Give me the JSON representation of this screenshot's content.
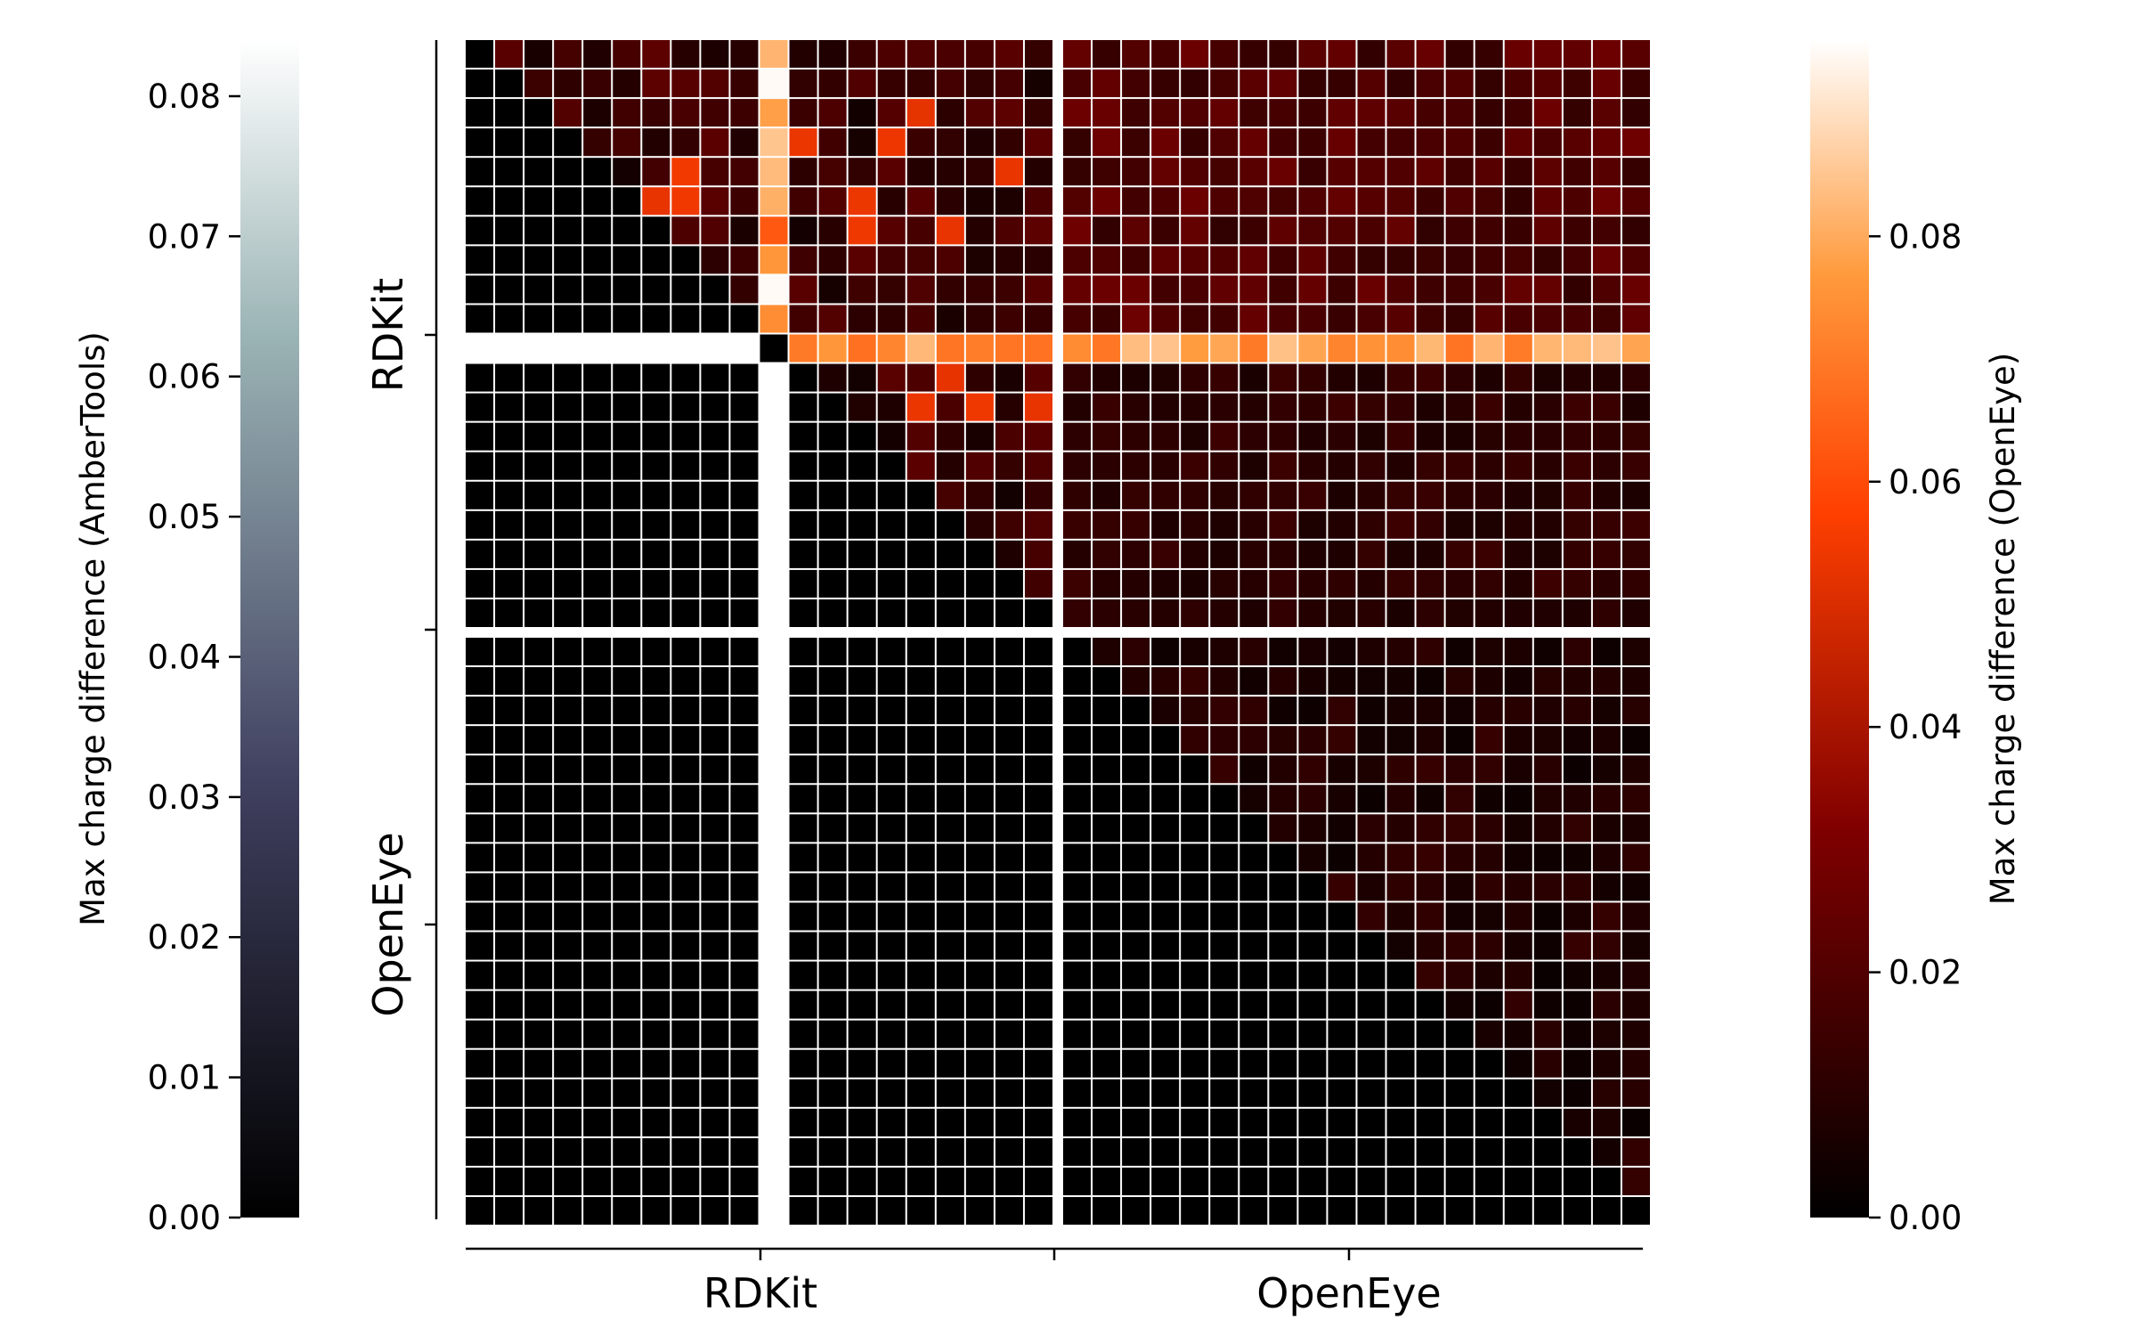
{
  "chart_data": {
    "type": "heatmap",
    "description_groups": {
      "row_groups": [
        "RDKit",
        "OpenEye"
      ],
      "col_groups": [
        "RDKit",
        "OpenEye"
      ]
    },
    "grid": {
      "rows": 40,
      "cols": 40,
      "group_split": 20,
      "nan_row": 10,
      "nan_col": 10
    },
    "colorbars": [
      {
        "id": "ambertools",
        "label": "Max charge difference (AmberTools)",
        "range": [
          0.0,
          0.084
        ],
        "ticks": [
          0.0,
          0.01,
          0.02,
          0.03,
          0.04,
          0.05,
          0.06,
          0.07,
          0.08
        ],
        "tick_labels": [
          "0.00",
          "0.01",
          "0.02",
          "0.03",
          "0.04",
          "0.05",
          "0.06",
          "0.07",
          "0.08"
        ],
        "colormap": "bone",
        "applies_to": "lower-left triangle"
      },
      {
        "id": "openeye",
        "label": "Max charge difference (OpenEye)",
        "range": [
          0.0,
          0.096
        ],
        "ticks": [
          0.0,
          0.02,
          0.04,
          0.06,
          0.08
        ],
        "tick_labels": [
          "0.00",
          "0.02",
          "0.04",
          "0.06",
          "0.08"
        ],
        "colormap": "gist_heat",
        "applies_to": "upper-right triangle"
      }
    ],
    "approx_values": {
      "lower_triangle_typical": 0.0,
      "rdkit_rdkit_upper_typical": 0.015,
      "rdkit_rdkit_upper_peak": 0.055,
      "nan_column_rdkit_values": [
        0.082,
        0.095,
        0.078,
        0.085,
        0.083,
        0.081,
        0.063,
        0.076,
        0.095,
        0.074
      ],
      "nan_row_openeye_typical": 0.075,
      "rdkit_openeye_block_typical": 0.022,
      "openeye_openeye_upper_typical": 0.009
    }
  }
}
